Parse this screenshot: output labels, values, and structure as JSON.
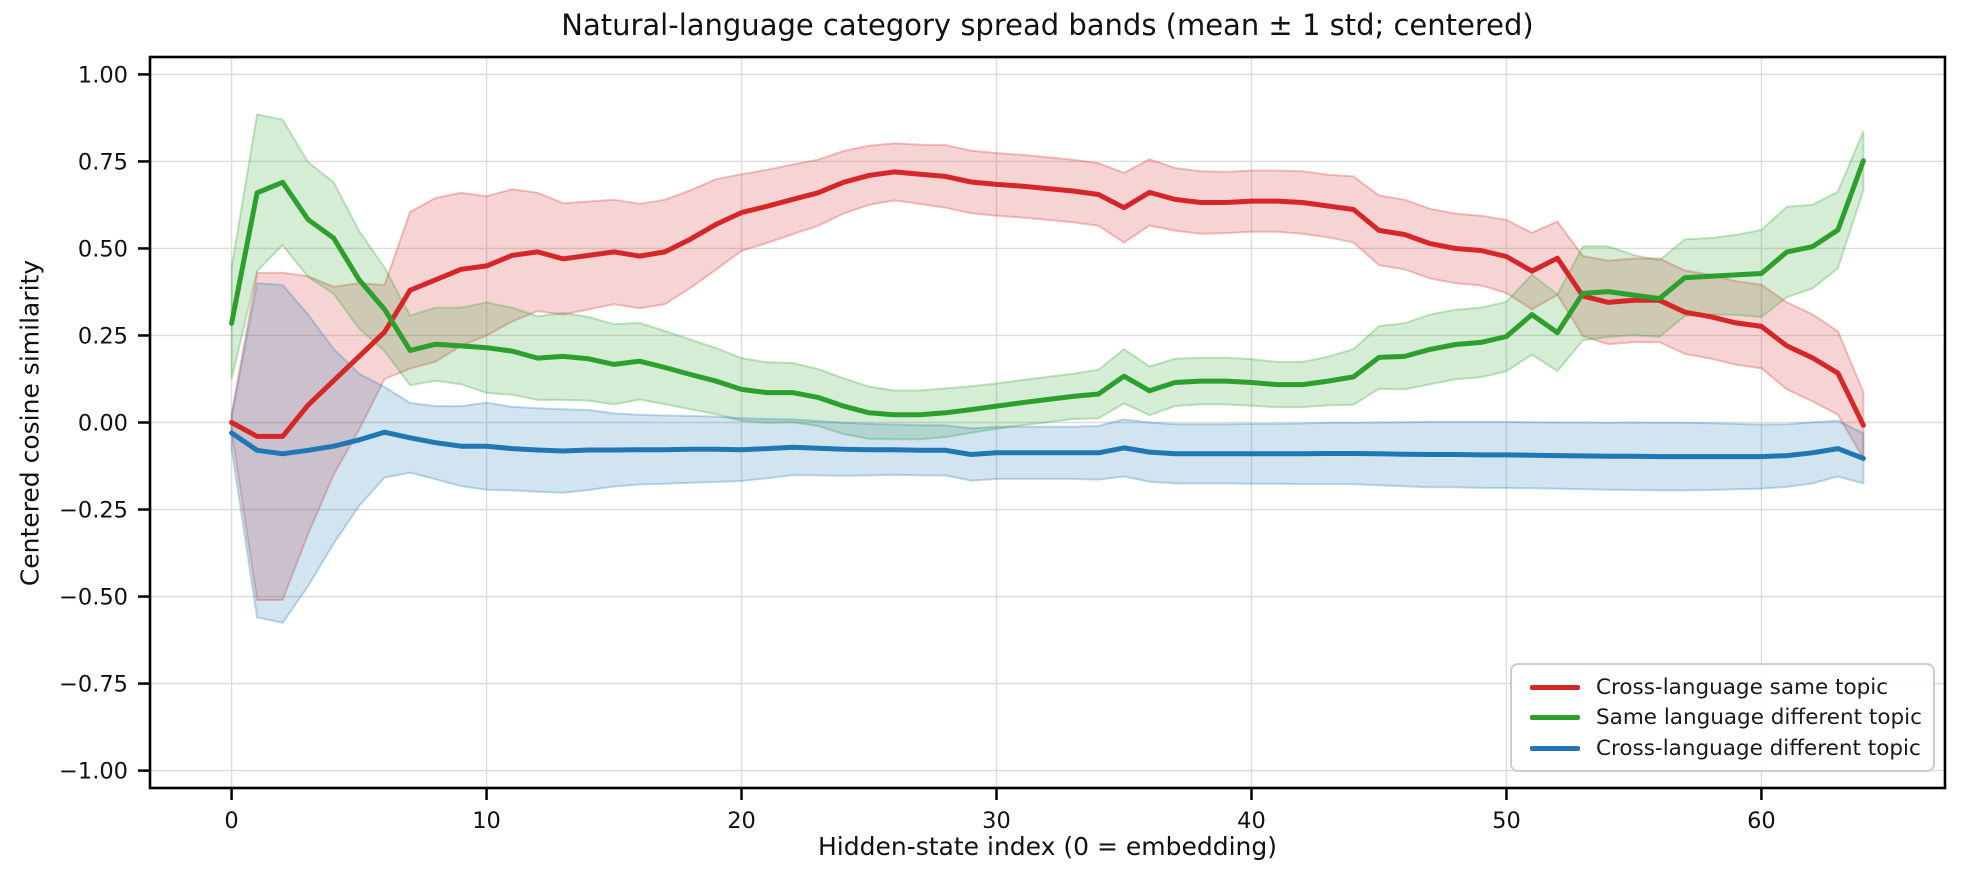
{
  "figure": {
    "title": "Natural-language category spread bands (mean ± 1 std; centered)",
    "xlabel": "Hidden-state index (0 = embedding)",
    "ylabel": "Centered cosine similarity",
    "background": "#ffffff",
    "spine_color": "#000000",
    "grid_color": "#dcdcdc"
  },
  "chart_data": {
    "type": "line",
    "band": "mean ± 1 std",
    "title": "Natural-language category spread bands (mean ± 1 std; centered)",
    "xlabel": "Hidden-state index (0 = embedding)",
    "ylabel": "Centered cosine similarity",
    "grid": true,
    "legend_position": "lower right",
    "xlim": [
      -3.2,
      67.2
    ],
    "ylim": [
      -1.05,
      1.05
    ],
    "x_ticks": [
      0,
      10,
      20,
      30,
      40,
      50,
      60
    ],
    "y_ticks": [
      {
        "v": 1.0,
        "label": "1.00"
      },
      {
        "v": 0.75,
        "label": "0.75"
      },
      {
        "v": 0.5,
        "label": "0.50"
      },
      {
        "v": 0.25,
        "label": "0.25"
      },
      {
        "v": 0.0,
        "label": "0.00"
      },
      {
        "v": -0.25,
        "label": "−0.25"
      },
      {
        "v": -0.5,
        "label": "−0.50"
      },
      {
        "v": -0.75,
        "label": "−0.75"
      },
      {
        "v": -1.0,
        "label": "−1.00"
      }
    ],
    "x": [
      0,
      1,
      2,
      3,
      4,
      5,
      6,
      7,
      8,
      9,
      10,
      11,
      12,
      13,
      14,
      15,
      16,
      17,
      18,
      19,
      20,
      21,
      22,
      23,
      24,
      25,
      26,
      27,
      28,
      29,
      30,
      31,
      32,
      33,
      34,
      35,
      36,
      37,
      38,
      39,
      40,
      41,
      42,
      43,
      44,
      45,
      46,
      47,
      48,
      49,
      50,
      51,
      52,
      53,
      54,
      55,
      56,
      57,
      58,
      59,
      60,
      61,
      62,
      63,
      64
    ],
    "series": [
      {
        "name": "Cross-language same topic",
        "color": "#d62728",
        "band_alpha": 0.2,
        "mean": [
          0.0,
          -0.04,
          -0.04,
          0.05,
          0.12,
          0.19,
          0.26,
          0.38,
          0.41,
          0.44,
          0.45,
          0.48,
          0.49,
          0.47,
          0.48,
          0.49,
          0.478,
          0.49,
          0.527,
          0.569,
          0.603,
          0.621,
          0.641,
          0.66,
          0.69,
          0.71,
          0.72,
          0.713,
          0.707,
          0.691,
          0.684,
          0.679,
          0.672,
          0.665,
          0.655,
          0.617,
          0.661,
          0.641,
          0.632,
          0.632,
          0.636,
          0.636,
          0.632,
          0.622,
          0.612,
          0.552,
          0.54,
          0.514,
          0.5,
          0.494,
          0.477,
          0.435,
          0.472,
          0.363,
          0.345,
          0.351,
          0.351,
          0.317,
          0.304,
          0.286,
          0.276,
          0.22,
          0.186,
          0.142,
          -0.008
        ],
        "std": [
          0.025,
          0.47,
          0.47,
          0.37,
          0.27,
          0.21,
          0.135,
          0.225,
          0.235,
          0.22,
          0.2,
          0.19,
          0.17,
          0.16,
          0.155,
          0.15,
          0.15,
          0.15,
          0.14,
          0.13,
          0.11,
          0.105,
          0.1,
          0.095,
          0.09,
          0.085,
          0.082,
          0.085,
          0.09,
          0.09,
          0.09,
          0.09,
          0.09,
          0.09,
          0.09,
          0.1,
          0.095,
          0.09,
          0.09,
          0.088,
          0.088,
          0.088,
          0.09,
          0.09,
          0.095,
          0.1,
          0.1,
          0.1,
          0.1,
          0.1,
          0.105,
          0.11,
          0.105,
          0.115,
          0.12,
          0.12,
          0.12,
          0.12,
          0.12,
          0.12,
          0.12,
          0.125,
          0.125,
          0.12,
          0.095
        ]
      },
      {
        "name": "Same language different topic",
        "color": "#2ca02c",
        "band_alpha": 0.2,
        "mean": [
          0.285,
          0.66,
          0.69,
          0.583,
          0.53,
          0.41,
          0.325,
          0.207,
          0.225,
          0.22,
          0.215,
          0.205,
          0.185,
          0.19,
          0.183,
          0.167,
          0.176,
          0.158,
          0.138,
          0.119,
          0.095,
          0.086,
          0.086,
          0.072,
          0.047,
          0.028,
          0.022,
          0.022,
          0.028,
          0.037,
          0.047,
          0.057,
          0.066,
          0.075,
          0.082,
          0.133,
          0.091,
          0.115,
          0.119,
          0.119,
          0.115,
          0.109,
          0.109,
          0.119,
          0.131,
          0.187,
          0.19,
          0.21,
          0.224,
          0.23,
          0.247,
          0.31,
          0.258,
          0.371,
          0.376,
          0.366,
          0.356,
          0.416,
          0.42,
          0.424,
          0.428,
          0.49,
          0.505,
          0.553,
          0.752
        ],
        "std": [
          0.16,
          0.225,
          0.18,
          0.165,
          0.16,
          0.14,
          0.12,
          0.1,
          0.105,
          0.11,
          0.13,
          0.125,
          0.12,
          0.125,
          0.12,
          0.115,
          0.11,
          0.105,
          0.1,
          0.095,
          0.09,
          0.087,
          0.085,
          0.082,
          0.08,
          0.075,
          0.07,
          0.07,
          0.07,
          0.067,
          0.065,
          0.065,
          0.065,
          0.065,
          0.07,
          0.078,
          0.07,
          0.068,
          0.067,
          0.067,
          0.067,
          0.065,
          0.065,
          0.07,
          0.08,
          0.09,
          0.095,
          0.1,
          0.1,
          0.1,
          0.1,
          0.115,
          0.11,
          0.135,
          0.13,
          0.115,
          0.11,
          0.11,
          0.11,
          0.115,
          0.125,
          0.13,
          0.12,
          0.11,
          0.085
        ]
      },
      {
        "name": "Cross-language different topic",
        "color": "#1f77b4",
        "band_alpha": 0.2,
        "mean": [
          -0.03,
          -0.08,
          -0.09,
          -0.08,
          -0.068,
          -0.05,
          -0.028,
          -0.044,
          -0.058,
          -0.068,
          -0.068,
          -0.075,
          -0.079,
          -0.082,
          -0.079,
          -0.079,
          -0.078,
          -0.078,
          -0.077,
          -0.077,
          -0.078,
          -0.075,
          -0.071,
          -0.074,
          -0.077,
          -0.078,
          -0.078,
          -0.08,
          -0.08,
          -0.092,
          -0.087,
          -0.087,
          -0.087,
          -0.087,
          -0.087,
          -0.073,
          -0.085,
          -0.09,
          -0.09,
          -0.09,
          -0.09,
          -0.09,
          -0.09,
          -0.089,
          -0.089,
          -0.09,
          -0.091,
          -0.092,
          -0.092,
          -0.093,
          -0.093,
          -0.094,
          -0.095,
          -0.096,
          -0.097,
          -0.097,
          -0.098,
          -0.098,
          -0.098,
          -0.098,
          -0.098,
          -0.095,
          -0.087,
          -0.075,
          -0.103
        ],
        "std": [
          0.045,
          0.48,
          0.485,
          0.39,
          0.28,
          0.19,
          0.13,
          0.1,
          0.105,
          0.115,
          0.125,
          0.12,
          0.12,
          0.12,
          0.115,
          0.105,
          0.1,
          0.098,
          0.096,
          0.094,
          0.09,
          0.085,
          0.08,
          0.078,
          0.076,
          0.074,
          0.072,
          0.072,
          0.072,
          0.075,
          0.075,
          0.075,
          0.075,
          0.075,
          0.077,
          0.082,
          0.085,
          0.085,
          0.085,
          0.085,
          0.086,
          0.086,
          0.087,
          0.088,
          0.088,
          0.09,
          0.092,
          0.094,
          0.094,
          0.095,
          0.095,
          0.095,
          0.095,
          0.096,
          0.096,
          0.097,
          0.097,
          0.097,
          0.096,
          0.094,
          0.092,
          0.09,
          0.088,
          0.08,
          0.072
        ]
      }
    ]
  }
}
